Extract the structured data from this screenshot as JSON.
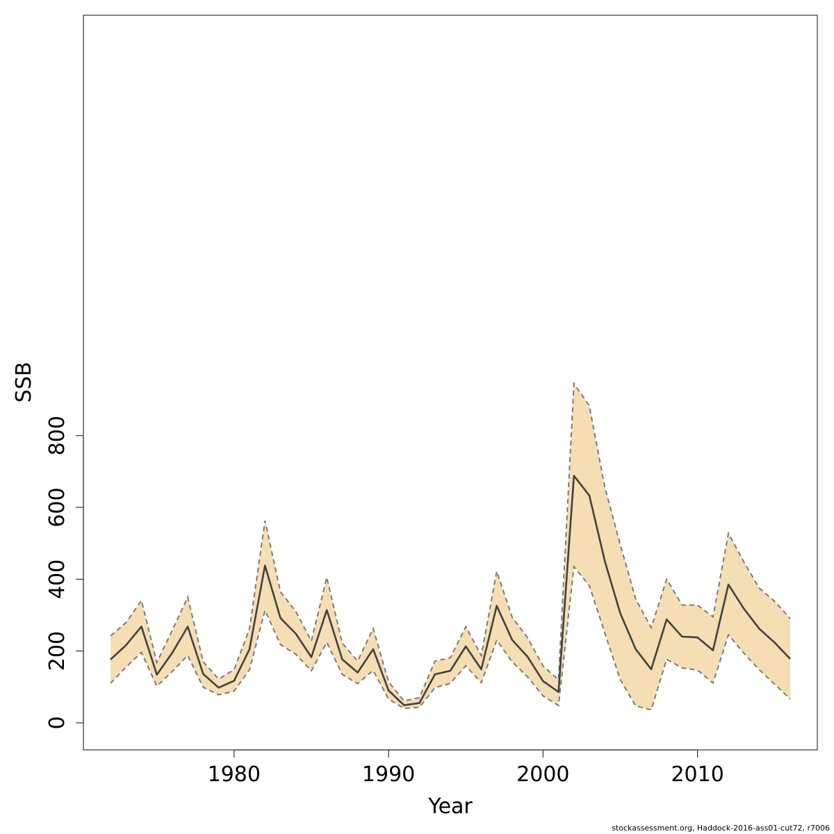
{
  "chart_data": {
    "type": "area",
    "title": "",
    "xlabel": "Year",
    "ylabel": "SSB",
    "xlim": [
      1972,
      2016
    ],
    "ylim": [
      0,
      950
    ],
    "x_ticks": [
      1980,
      1990,
      2000,
      2010
    ],
    "y_ticks": [
      0,
      200,
      400,
      600,
      800
    ],
    "grid": false,
    "legend": "none",
    "x": [
      1972,
      1973,
      1974,
      1975,
      1976,
      1977,
      1978,
      1979,
      1980,
      1981,
      1982,
      1983,
      1984,
      1985,
      1986,
      1987,
      1988,
      1989,
      1990,
      1991,
      1992,
      1993,
      1994,
      1995,
      1996,
      1997,
      1998,
      1999,
      2000,
      2001,
      2002,
      2003,
      2004,
      2005,
      2006,
      2007,
      2008,
      2009,
      2010,
      2011,
      2012,
      2013,
      2014,
      2015,
      2016
    ],
    "series": [
      {
        "role": "estimate",
        "values": [
          176,
          216,
          268,
          134,
          195,
          268,
          136,
          98,
          117,
          205,
          438,
          292,
          248,
          183,
          314,
          177,
          140,
          205,
          90,
          49,
          55,
          135,
          145,
          213,
          149,
          326,
          231,
          184,
          116,
          86,
          688,
          633,
          450,
          305,
          205,
          149,
          288,
          240,
          238,
          202,
          385,
          318,
          262,
          223,
          178
        ]
      },
      {
        "role": "upper",
        "values": [
          242,
          279,
          341,
          168,
          258,
          350,
          170,
          122,
          148,
          262,
          563,
          365,
          310,
          228,
          405,
          222,
          172,
          263,
          114,
          61,
          70,
          172,
          181,
          268,
          187,
          422,
          294,
          237,
          158,
          120,
          945,
          883,
          656,
          496,
          345,
          265,
          400,
          328,
          328,
          295,
          528,
          448,
          375,
          338,
          290
        ]
      },
      {
        "role": "lower",
        "values": [
          110,
          155,
          196,
          102,
          143,
          188,
          99,
          78,
          88,
          148,
          313,
          218,
          191,
          145,
          224,
          135,
          109,
          146,
          66,
          40,
          43,
          98,
          110,
          159,
          112,
          230,
          170,
          128,
          75,
          48,
          435,
          382,
          250,
          120,
          47,
          36,
          177,
          153,
          147,
          111,
          245,
          194,
          148,
          107,
          66
        ]
      }
    ],
    "colors": {
      "band_fill": "#f5deb3",
      "band_edge": "#7a7a7a",
      "line": "#404040",
      "axis": "#333333"
    }
  },
  "footer": {
    "credit": "stockassessment.org, Haddock-2016-ass01-cut72, r7006"
  }
}
